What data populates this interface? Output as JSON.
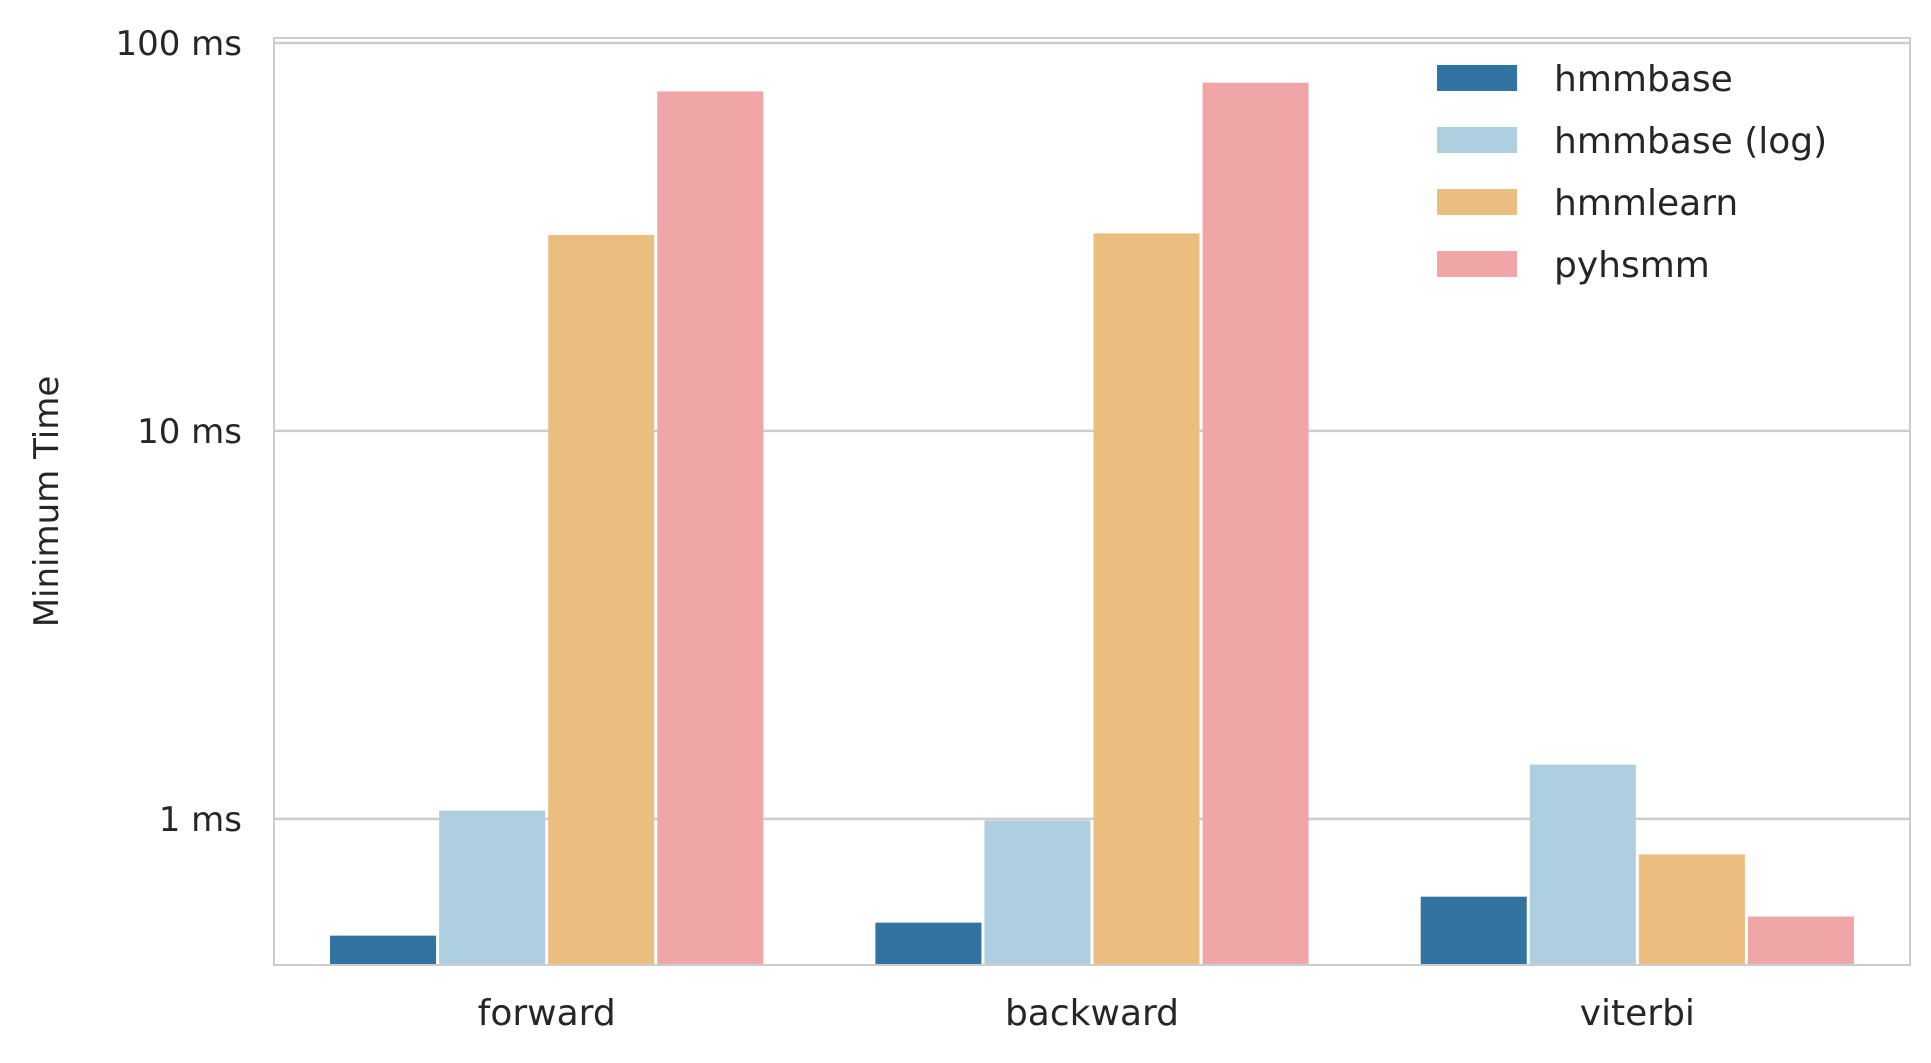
{
  "chart_data": {
    "type": "bar",
    "title": "",
    "xlabel": "",
    "ylabel": "Minimum Time",
    "yscale": "log",
    "ylim": [
      0.42,
      103
    ],
    "grid": true,
    "legend_position": "top-right",
    "categories": [
      "forward",
      "backward",
      "viterbi"
    ],
    "yticks": [
      {
        "value": 1,
        "label": "1 ms"
      },
      {
        "value": 10,
        "label": "10 ms"
      },
      {
        "value": 100,
        "label": "100 ms"
      }
    ],
    "series": [
      {
        "name": "hmmbase",
        "color": "#3274a1",
        "values": [
          0.5,
          0.54,
          0.63
        ]
      },
      {
        "name": "hmmbase (log)",
        "color": "#aecfe0",
        "values": [
          1.05,
          0.99,
          1.38
        ]
      },
      {
        "name": "hmmlearn",
        "color": "#ebbe80",
        "values": [
          32,
          32.3,
          0.81
        ]
      },
      {
        "name": "pyhsmm",
        "color": "#f0a5a7",
        "values": [
          75,
          79,
          0.56
        ]
      }
    ]
  }
}
